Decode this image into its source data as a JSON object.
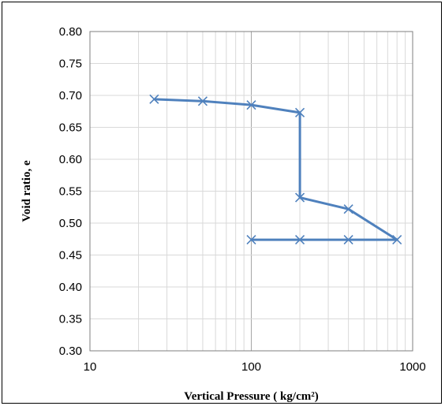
{
  "chart_data": {
    "type": "line",
    "xlabel": "Vertical Pressure ( kg/cm²)",
    "ylabel": "Void ratio, e",
    "x_scale": "log",
    "xlim": [
      10,
      1000
    ],
    "ylim": [
      0.3,
      0.8
    ],
    "x_ticks": [
      "10",
      "100",
      "1000"
    ],
    "y_ticks": [
      "0.80",
      "0.75",
      "0.70",
      "0.65",
      "0.60",
      "0.55",
      "0.50",
      "0.45",
      "0.40",
      "0.35",
      "0.30"
    ],
    "grid": true,
    "legend": "none",
    "marker": "x",
    "series_color": "#4f81bd",
    "series": [
      {
        "x": [
          25,
          50,
          100,
          200,
          200,
          400,
          800,
          400,
          200,
          100
        ],
        "y": [
          0.694,
          0.691,
          0.685,
          0.673,
          0.54,
          0.522,
          0.474,
          0.474,
          0.474,
          0.474
        ]
      }
    ]
  }
}
